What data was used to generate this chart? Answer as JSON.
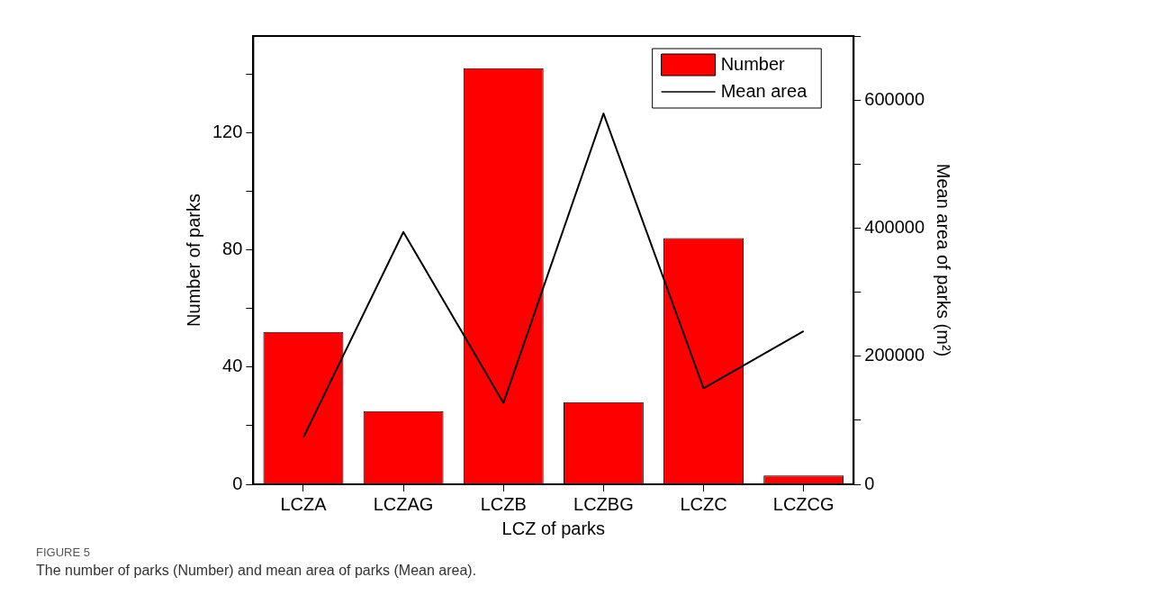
{
  "chart_data": {
    "type": "bar",
    "categories": [
      "LCZA",
      "LCZAG",
      "LCZB",
      "LCZBG",
      "LCZC",
      "LCZCG"
    ],
    "series": [
      {
        "name": "Number",
        "color": "#ff0000",
        "values": [
          52,
          25,
          142,
          28,
          84,
          3
        ]
      },
      {
        "name": "Mean area",
        "type": "line",
        "axis": "y2",
        "color": "#000000",
        "values": [
          73000,
          394000,
          127000,
          579000,
          150000,
          239000
        ]
      }
    ],
    "xlabel": "LCZ of parks",
    "ylabel": "Number of parks",
    "y2label": "Mean area of parks (m²)",
    "ylim": [
      0,
      153
    ],
    "yticks": [
      0,
      {
        "value": 20,
        "label": null
      },
      40,
      {
        "value": 60,
        "label": null
      },
      80,
      {
        "value": 100,
        "label": null
      },
      120,
      {
        "value": 140,
        "label": null
      }
    ],
    "y2lim": [
      0,
      700000
    ],
    "y2ticks": [
      0,
      {
        "value": 100000,
        "label": null
      },
      200000,
      {
        "value": 300000,
        "label": null
      },
      400000,
      {
        "value": 500000,
        "label": null
      },
      600000,
      {
        "value": 700000,
        "label": null
      }
    ],
    "legend": "top right",
    "grid": false,
    "marker": "none",
    "line_style": "solid",
    "annotations": [
      "FIGURE 5",
      "The number of parks (Number) and mean area of parks (Mean area)."
    ]
  }
}
